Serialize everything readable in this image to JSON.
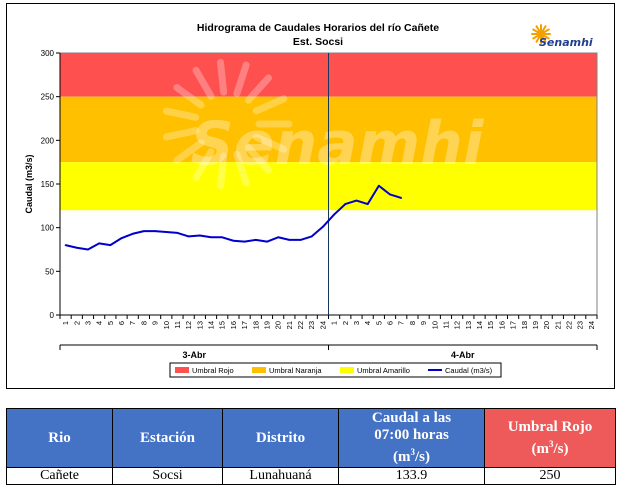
{
  "chart_data": {
    "type": "line",
    "title": "Hidrograma de Caudales Horarios del río Cañete",
    "subtitle": "Est. Socsi",
    "ylabel": "Caudal  (m3/s)",
    "ylim": [
      0,
      300
    ],
    "yticks": [
      0,
      50,
      100,
      150,
      200,
      250,
      300
    ],
    "x_ticklabels": [
      "1",
      "2",
      "3",
      "4",
      "5",
      "6",
      "7",
      "8",
      "9",
      "10",
      "11",
      "12",
      "13",
      "14",
      "15",
      "16",
      "17",
      "18",
      "19",
      "20",
      "21",
      "22",
      "23",
      "24",
      "1",
      "2",
      "3",
      "4",
      "5",
      "6",
      "7",
      "8",
      "9",
      "10",
      "11",
      "12",
      "13",
      "14",
      "15",
      "16",
      "17",
      "18",
      "19",
      "20",
      "21",
      "22",
      "23",
      "24"
    ],
    "day_labels": [
      "3-Abr",
      "4-Abr"
    ],
    "thresholds": [
      {
        "name": "Umbral Rojo",
        "from": 250,
        "to": 300,
        "color": "#ff5050"
      },
      {
        "name": "Umbral Naranja",
        "from": 175,
        "to": 250,
        "color": "#ffc000"
      },
      {
        "name": "Umbral Amarillo",
        "from": 120,
        "to": 175,
        "color": "#ffff00"
      }
    ],
    "series": [
      {
        "name": "Caudal (m3/s)",
        "color": "#0000cc",
        "x": [
          1,
          2,
          3,
          4,
          5,
          6,
          7,
          8,
          9,
          10,
          11,
          12,
          13,
          14,
          15,
          16,
          17,
          18,
          19,
          20,
          21,
          22,
          23,
          24,
          25,
          26,
          27,
          28,
          29,
          30,
          31
        ],
        "values": [
          80,
          77,
          75,
          82,
          80,
          88,
          93,
          96,
          96,
          95,
          94,
          90,
          91,
          89,
          89,
          85,
          84,
          86,
          84,
          89,
          86,
          86,
          90,
          101,
          115,
          127,
          131,
          127,
          148,
          138,
          134
        ]
      }
    ],
    "legend": [
      "Umbral Rojo",
      "Umbral Naranja",
      "Umbral Amarillo",
      "Caudal (m3/s)"
    ],
    "legend_position": "bottom",
    "day_divider_after": 24,
    "watermark": "Senamhi",
    "logo_text": "Senamhi"
  },
  "table": {
    "headers": [
      "Rio",
      "Estación",
      "Distrito",
      "Caudal a las 07:00 horas (m3/s)",
      "Umbral Rojo (m3/s)"
    ],
    "caudal_header_lines": [
      "Caudal a las",
      "07:00 horas",
      "(m",
      "3",
      "/s)"
    ],
    "umbral_header_lines": [
      "Umbral Rojo",
      "(m",
      "3",
      "/s)"
    ],
    "row": [
      "Cañete",
      "Socsi",
      "Lunahuaná",
      "133.9",
      "250"
    ]
  }
}
